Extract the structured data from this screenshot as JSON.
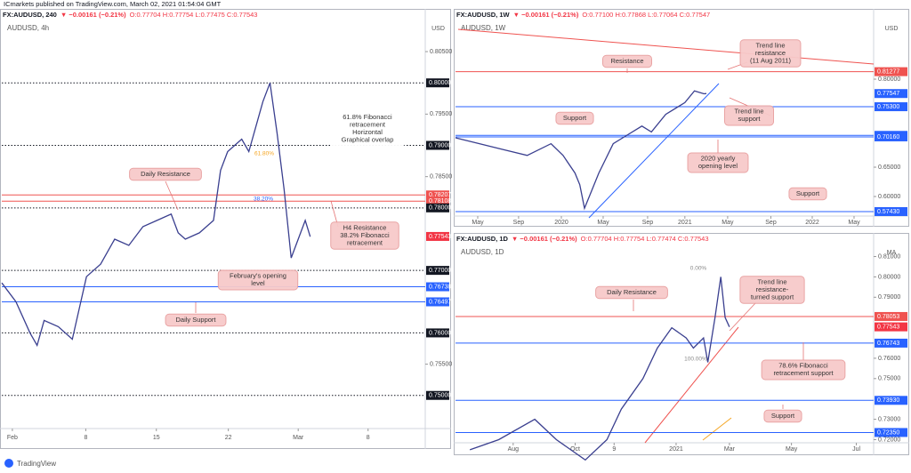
{
  "published": "ICmarkets published on TradingView.com, March 02, 2021 01:54:04 GMT",
  "footer": "TradingView",
  "chart_data": [
    {
      "type": "line",
      "symbol": "FX:AUDUSD, 240",
      "change": "▼ −0.00161 (−0.21%)",
      "ohlc": "O:0.77704 H:0.77754 L:0.77475 C:0.77543",
      "subtitle": "AUDUSD, 4h",
      "currency": "USD",
      "color": "#3a3f8f",
      "x": [
        0,
        2,
        4,
        5,
        6,
        8,
        10,
        12,
        14,
        16,
        18,
        20,
        22,
        24,
        25,
        26,
        28,
        30,
        31,
        32,
        33,
        34,
        35,
        36,
        37,
        38,
        39,
        40,
        41,
        42,
        43,
        43.7
      ],
      "values": [
        0.768,
        0.765,
        0.76,
        0.758,
        0.762,
        0.761,
        0.759,
        0.769,
        0.771,
        0.775,
        0.774,
        0.777,
        0.778,
        0.779,
        0.776,
        0.775,
        0.776,
        0.778,
        0.786,
        0.789,
        0.79,
        0.791,
        0.789,
        0.793,
        0.797,
        0.8,
        0.792,
        0.783,
        0.772,
        0.775,
        0.778,
        0.7754
      ],
      "xlim": [
        0,
        60
      ],
      "ylim": [
        0.7447,
        0.8097
      ],
      "xticks": [
        {
          "value": 1.5,
          "label": "Feb"
        },
        {
          "value": 11.9,
          "label": "8"
        },
        {
          "value": 21.9,
          "label": "15"
        },
        {
          "value": 32.1,
          "label": "22"
        },
        {
          "value": 42,
          "label": "Mar"
        },
        {
          "value": 51.9,
          "label": "8"
        }
      ],
      "yticks": [
        {
          "value": 0.805,
          "label": "0.80500"
        },
        {
          "value": 0.795,
          "label": "0.79500"
        },
        {
          "value": 0.785,
          "label": "0.78500"
        },
        {
          "value": 0.755,
          "label": "0.75500"
        }
      ],
      "levels": [
        {
          "value": 0.8,
          "label": "0.80000",
          "color": "#131722",
          "style": "dotted"
        },
        {
          "value": 0.79,
          "label": "0.79000",
          "color": "#131722",
          "style": "dotted"
        },
        {
          "value": 0.78207,
          "label": "0.78207",
          "color": "#ef5350",
          "style": "solid"
        },
        {
          "value": 0.78108,
          "label": "0.78108",
          "color": "#ef5350",
          "style": "solid"
        },
        {
          "value": 0.78,
          "label": "0.78000",
          "color": "#131722",
          "style": "dotted"
        },
        {
          "value": 0.77543,
          "label": "0.77543",
          "color": "#f23645",
          "style": "none"
        },
        {
          "value": 0.77,
          "label": "0.77000",
          "color": "#131722",
          "style": "dotted"
        },
        {
          "value": 0.76738,
          "label": "0.76738",
          "color": "#2962ff",
          "style": "solid"
        },
        {
          "value": 0.76497,
          "label": "0.76497",
          "color": "#2962ff",
          "style": "solid"
        },
        {
          "value": 0.76,
          "label": "0.76000",
          "color": "#131722",
          "style": "dotted"
        },
        {
          "value": 0.75,
          "label": "0.75000",
          "color": "#131722",
          "style": "dotted"
        }
      ],
      "annotations": [
        [
          "Daily Resistance"
        ],
        [
          "61.8% Fibonacci",
          "retracement",
          "Horizontal",
          "Graphical overlap"
        ],
        [
          "H4 Resistance",
          "38.2% Fibonacci",
          "retracement"
        ],
        [
          "February's opening",
          "level"
        ],
        [
          "Daily Support"
        ]
      ],
      "notes": [
        "61.80%",
        "38.20%"
      ]
    },
    {
      "type": "line",
      "symbol": "FX:AUDUSD, 1W",
      "change": "▼ −0.00161 (−0.21%)",
      "ohlc": "O:0.77100 H:0.77868 L:0.77064 C:0.77547",
      "subtitle": "AUDUSD, 1W",
      "currency": "USD",
      "color": "#3a3f8f",
      "x": [
        0,
        10,
        20,
        30,
        40,
        45,
        50,
        52,
        54,
        56,
        60,
        66,
        70,
        78,
        82,
        88,
        96,
        100,
        104,
        105
      ],
      "values": [
        0.7,
        0.69,
        0.68,
        0.67,
        0.69,
        0.67,
        0.64,
        0.62,
        0.58,
        0.6,
        0.64,
        0.69,
        0.7,
        0.72,
        0.71,
        0.74,
        0.76,
        0.78,
        0.775,
        0.7755
      ],
      "xlim": [
        0,
        175
      ],
      "ylim": [
        0.5667,
        0.8955
      ],
      "xticks": [
        {
          "value": 9.3,
          "label": "May"
        },
        {
          "value": 26.4,
          "label": "Sep"
        },
        {
          "value": 44.3,
          "label": "2020"
        },
        {
          "value": 61.8,
          "label": "May"
        },
        {
          "value": 80.4,
          "label": "Sep"
        },
        {
          "value": 96,
          "label": "2021"
        },
        {
          "value": 113.9,
          "label": "May"
        },
        {
          "value": 132,
          "label": "Sep"
        },
        {
          "value": 149.3,
          "label": "2022"
        },
        {
          "value": 166.8,
          "label": "May"
        }
      ],
      "yticks": [
        {
          "value": 0.8,
          "label": "0.80000"
        },
        {
          "value": 0.65,
          "label": "0.65000"
        },
        {
          "value": 0.6,
          "label": "0.60000"
        }
      ],
      "levels": [
        {
          "value": 0.81277,
          "label": "0.81277",
          "color": "#ef5350",
          "style": "solid"
        },
        {
          "value": 0.77547,
          "label": "0.77547",
          "color": "#2962ff",
          "style": "none"
        },
        {
          "value": 0.753,
          "label": "0.75300",
          "color": "#2962ff",
          "style": "solid"
        },
        {
          "value": 0.7042,
          "label": "0.70420",
          "color": "#2962ff",
          "style": "solid"
        },
        {
          "value": 0.7016,
          "label": "0.70160",
          "color": "#2962ff",
          "style": "solid"
        },
        {
          "value": 0.5743,
          "label": "0.57430",
          "color": "#2962ff",
          "style": "solid"
        }
      ],
      "annotations": [
        [
          "Resistance"
        ],
        [
          "Trend line",
          "resistance",
          "(11 Aug 2011)"
        ],
        [
          "Support"
        ],
        [
          "Trend line",
          "support"
        ],
        [
          "2020 yearly",
          "opening level"
        ],
        [
          "Support"
        ]
      ],
      "notes": []
    },
    {
      "type": "line",
      "symbol": "FX:AUDUSD, 1D",
      "change": "▼ −0.00161 (−0.21%)",
      "ohlc": "O:0.77704 H:0.77754 L:0.77474 C:0.77543",
      "subtitle": "AUDUSD, 1D",
      "currency": "MA",
      "color": "#3a3f8f",
      "x": [
        10,
        30,
        55,
        70,
        90,
        105,
        115,
        130,
        140,
        150,
        160,
        165,
        172,
        175,
        180,
        184,
        187,
        190
      ],
      "values": [
        0.715,
        0.72,
        0.73,
        0.72,
        0.71,
        0.72,
        0.735,
        0.75,
        0.765,
        0.775,
        0.77,
        0.765,
        0.77,
        0.758,
        0.78,
        0.8,
        0.78,
        0.7754
      ],
      "xlim": [
        0,
        290
      ],
      "ylim": [
        0.71845,
        0.81373
      ],
      "xticks": [
        {
          "value": 40,
          "label": "Aug"
        },
        {
          "value": 83,
          "label": "Oct"
        },
        {
          "value": 110,
          "label": "9"
        },
        {
          "value": 153,
          "label": "2021"
        },
        {
          "value": 190,
          "label": "Mar"
        },
        {
          "value": 233,
          "label": "May"
        },
        {
          "value": 278,
          "label": "Jul"
        }
      ],
      "yticks": [
        {
          "value": 0.81,
          "label": "0.81000"
        },
        {
          "value": 0.8,
          "label": "0.80000"
        },
        {
          "value": 0.79,
          "label": "0.79000"
        },
        {
          "value": 0.76,
          "label": "0.76000"
        },
        {
          "value": 0.75,
          "label": "0.75000"
        },
        {
          "value": 0.73,
          "label": "0.73000"
        },
        {
          "value": 0.72,
          "label": "0.72000"
        }
      ],
      "levels": [
        {
          "value": 0.78053,
          "label": "0.78053",
          "color": "#ef5350",
          "style": "solid"
        },
        {
          "value": 0.77543,
          "label": "0.77543",
          "color": "#f23645",
          "style": "none"
        },
        {
          "value": 0.76743,
          "label": "0.76743",
          "color": "#2962ff",
          "style": "solid"
        },
        {
          "value": 0.7393,
          "label": "0.73930",
          "color": "#2962ff",
          "style": "solid"
        },
        {
          "value": 0.7235,
          "label": "0.72350",
          "color": "#2962ff",
          "style": "solid"
        }
      ],
      "annotations": [
        [
          "Daily Resistance"
        ],
        [
          "Trend line",
          "resistance-",
          "turned support"
        ],
        [
          "78.6% Fibonacci",
          "retracement support"
        ],
        [
          "Support"
        ]
      ],
      "notes": [
        "0.00%",
        "100.00%"
      ]
    }
  ]
}
